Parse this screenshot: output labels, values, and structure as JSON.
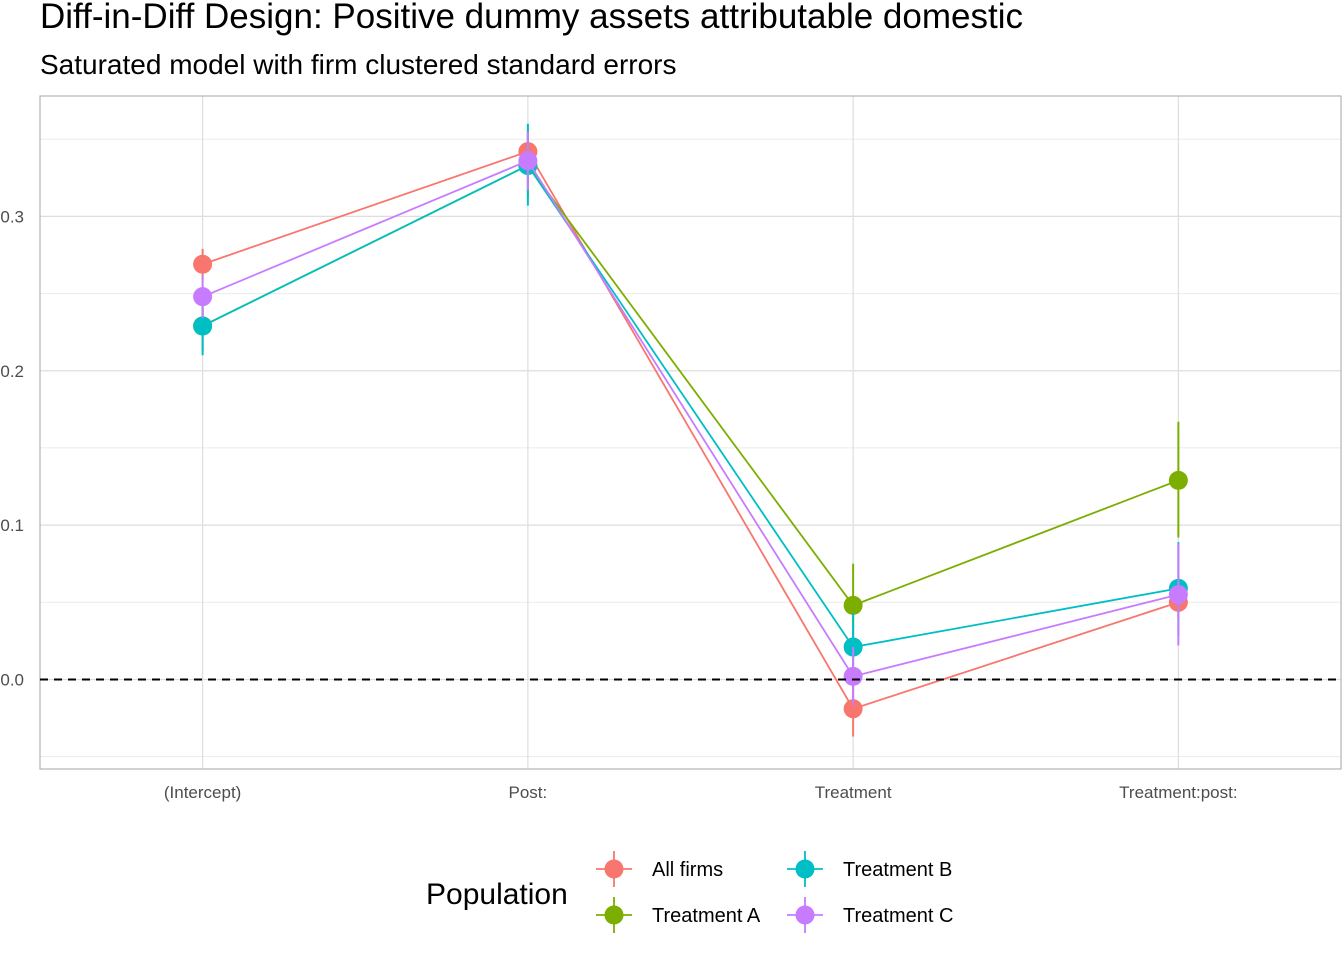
{
  "chart_data": {
    "type": "scatter",
    "title": "Diff-in-Diff Design: Positive dummy assets attributable domestic",
    "subtitle": "Saturated model with firm clustered standard errors",
    "categories": [
      "(Intercept)",
      "Post:",
      "Treatment",
      "Treatment:post:"
    ],
    "y_ticks": [
      0.0,
      0.1,
      0.2,
      0.3
    ],
    "y_tick_labels": [
      "0.0",
      "0.1",
      "0.2",
      "0.3"
    ],
    "ylim": [
      -0.058,
      0.378
    ],
    "reference_line": 0,
    "grid": true,
    "legend": {
      "title": "Population",
      "position": "bottom"
    },
    "series": [
      {
        "name": "All firms",
        "color": "#F8766D",
        "values": [
          0.269,
          0.342,
          -0.019,
          0.05
        ],
        "lower": [
          0.259,
          0.326,
          -0.037,
          0.04
        ],
        "upper": [
          0.279,
          0.357,
          -0.001,
          0.061
        ]
      },
      {
        "name": "Treatment A",
        "color": "#7CAE00",
        "values": [
          0.229,
          0.333,
          0.048,
          0.129
        ],
        "lower": [
          0.213,
          0.312,
          0.021,
          0.092
        ],
        "upper": [
          0.245,
          0.354,
          0.075,
          0.167
        ]
      },
      {
        "name": "Treatment B",
        "color": "#00BFC4",
        "values": [
          0.229,
          0.333,
          0.021,
          0.059
        ],
        "lower": [
          0.21,
          0.307,
          -0.002,
          0.028
        ],
        "upper": [
          0.248,
          0.36,
          0.043,
          0.089
        ]
      },
      {
        "name": "Treatment C",
        "color": "#C77CFF",
        "values": [
          0.248,
          0.336,
          0.002,
          0.055
        ],
        "lower": [
          0.234,
          0.317,
          -0.017,
          0.022
        ],
        "upper": [
          0.262,
          0.355,
          0.021,
          0.088
        ]
      }
    ]
  }
}
